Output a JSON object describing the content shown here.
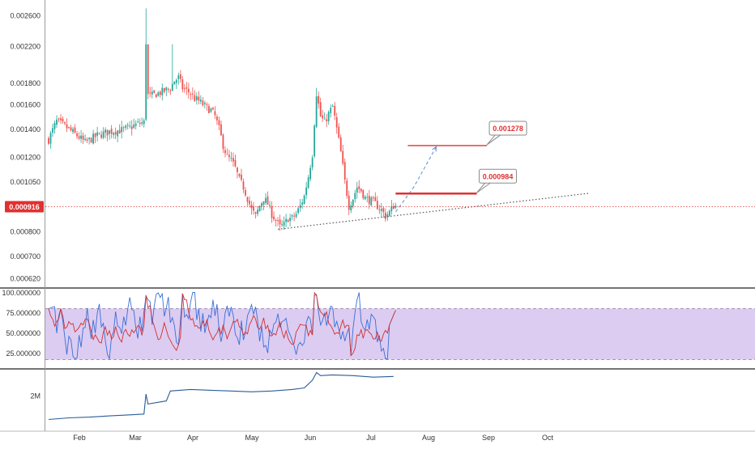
{
  "colors": {
    "background": "#ffffff",
    "up": "#26a69a",
    "down": "#ef5350",
    "target_line": "#e03030",
    "current_price": "#e03030",
    "trendline": "#555555",
    "projection": "#5b8fd6",
    "rsi_blue": "#3a6fd8",
    "rsi_red": "#d32f2f",
    "rsi_band": "#d6c3ee",
    "volume_line": "#2a5c9a",
    "axis_text": "#333333",
    "divider": "#222222"
  },
  "chart_data": [
    {
      "type": "candlestick",
      "panel": "price",
      "x_labels": [
        "Feb",
        "Mar",
        "Apr",
        "May",
        "Jun",
        "Jul",
        "Aug",
        "Sep",
        "Oct"
      ],
      "y_tick_labels": [
        "0.002600",
        "0.002200",
        "0.001800",
        "0.001600",
        "0.001400",
        "0.001200",
        "0.001050",
        "0.000800",
        "0.000700",
        "0.000620"
      ],
      "y_scale": "log",
      "ylim": [
        0.00059,
        0.0027
      ],
      "x_range_days": [
        -5,
        266
      ],
      "series_approx_close": [
        [
          0,
          0.00132
        ],
        [
          4,
          0.00146
        ],
        [
          8,
          0.00142
        ],
        [
          14,
          0.00135
        ],
        [
          18,
          0.0013
        ],
        [
          24,
          0.00135
        ],
        [
          30,
          0.00138
        ],
        [
          36,
          0.00139
        ],
        [
          40,
          0.00141
        ],
        [
          44,
          0.00144
        ],
        [
          47,
          0.00145
        ],
        [
          48,
          0.00225
        ],
        [
          49,
          0.00168
        ],
        [
          51,
          0.00168
        ],
        [
          54,
          0.0017
        ],
        [
          57,
          0.00172
        ],
        [
          60,
          0.00175
        ],
        [
          62,
          0.00182
        ],
        [
          64,
          0.00185
        ],
        [
          66,
          0.00175
        ],
        [
          70,
          0.0017
        ],
        [
          72,
          0.00165
        ],
        [
          74,
          0.00163
        ],
        [
          76,
          0.0016
        ],
        [
          78,
          0.00157
        ],
        [
          80,
          0.00155
        ],
        [
          82,
          0.0015
        ],
        [
          84,
          0.0014
        ],
        [
          86,
          0.00128
        ],
        [
          88,
          0.0012
        ],
        [
          90,
          0.00118
        ],
        [
          92,
          0.00113
        ],
        [
          94,
          0.00106
        ],
        [
          96,
          0.00102
        ],
        [
          98,
          0.00096
        ],
        [
          100,
          0.0009
        ],
        [
          102,
          0.00087
        ],
        [
          104,
          0.00092
        ],
        [
          106,
          0.00096
        ],
        [
          108,
          0.00093
        ],
        [
          110,
          0.00088
        ],
        [
          112,
          0.00085
        ],
        [
          114,
          0.00082
        ],
        [
          116,
          0.00083
        ],
        [
          118,
          0.00086
        ],
        [
          120,
          0.00086
        ],
        [
          122,
          0.00088
        ],
        [
          124,
          0.00092
        ],
        [
          126,
          0.00097
        ],
        [
          128,
          0.00108
        ],
        [
          130,
          0.00122
        ],
        [
          131,
          0.00145
        ],
        [
          132,
          0.0017
        ],
        [
          133,
          0.0016
        ],
        [
          134,
          0.0015
        ],
        [
          136,
          0.00145
        ],
        [
          138,
          0.00152
        ],
        [
          140,
          0.00158
        ],
        [
          142,
          0.0014
        ],
        [
          144,
          0.00123
        ],
        [
          146,
          0.00105
        ],
        [
          148,
          0.00092
        ],
        [
          150,
          0.00096
        ],
        [
          152,
          0.00102
        ],
        [
          154,
          0.001
        ],
        [
          156,
          0.00096
        ],
        [
          158,
          0.00095
        ],
        [
          160,
          0.00094
        ],
        [
          162,
          0.00092
        ],
        [
          164,
          0.0009
        ],
        [
          166,
          0.00087
        ],
        [
          168,
          0.00089
        ],
        [
          170,
          0.00092
        ]
      ],
      "spikes": [
        {
          "x": 48,
          "high": 0.0027
        },
        {
          "x": 61,
          "high": 0.00222
        },
        {
          "x": 132,
          "high": 0.00175
        },
        {
          "x": 139,
          "high": 0.0016
        }
      ],
      "current_price": 0.000916,
      "current_price_label": "0.000916",
      "annotations": [
        {
          "label": "0.000984",
          "value": 0.000984,
          "x_start": 171,
          "x_end": 211
        },
        {
          "label": "0.001278",
          "value": 0.001278,
          "x_start": 177,
          "x_end": 216
        }
      ],
      "trendline": {
        "x_start": 113,
        "y_start": 0.00081,
        "x_end": 266,
        "y_end": 0.000985
      },
      "projection": [
        [
          171,
          0.00089
        ],
        [
          180,
          0.00102
        ],
        [
          191,
          0.00127
        ]
      ]
    },
    {
      "type": "line",
      "panel": "rsi",
      "y_tick_labels": [
        "100.000000",
        "75.000000",
        "50.000000",
        "25.000000"
      ],
      "ylim": [
        0,
        105
      ],
      "band": [
        17,
        80
      ],
      "series": [
        {
          "color_key": "rsi_blue",
          "approx_range": [
            22,
            100
          ]
        },
        {
          "color_key": "rsi_red",
          "approx_range": [
            30,
            80
          ]
        }
      ]
    },
    {
      "type": "line",
      "panel": "volume",
      "y_tick_labels": [
        "2M"
      ],
      "ylim": [
        0,
        3.7
      ],
      "y_unit": "millions",
      "series_points": [
        [
          0,
          0.45
        ],
        [
          10,
          0.55
        ],
        [
          20,
          0.6
        ],
        [
          30,
          0.68
        ],
        [
          40,
          0.75
        ],
        [
          47,
          0.8
        ],
        [
          48,
          2.1
        ],
        [
          49,
          1.45
        ],
        [
          58,
          1.65
        ],
        [
          60,
          2.3
        ],
        [
          70,
          2.4
        ],
        [
          80,
          2.35
        ],
        [
          90,
          2.3
        ],
        [
          100,
          2.25
        ],
        [
          110,
          2.3
        ],
        [
          120,
          2.4
        ],
        [
          126,
          2.5
        ],
        [
          128,
          2.75
        ],
        [
          130,
          3.0
        ],
        [
          132,
          3.5
        ],
        [
          134,
          3.3
        ],
        [
          140,
          3.35
        ],
        [
          150,
          3.3
        ],
        [
          160,
          3.2
        ],
        [
          170,
          3.25
        ]
      ]
    }
  ]
}
